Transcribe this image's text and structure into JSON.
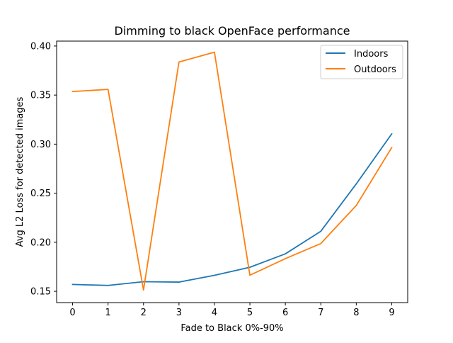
{
  "chart_data": {
    "type": "line",
    "title": "Dimming to black OpenFace performance",
    "xlabel": "Fade to Black 0%-90%",
    "ylabel": "Avg L2 Loss for detected images",
    "x": [
      0,
      1,
      2,
      3,
      4,
      5,
      6,
      7,
      8,
      9
    ],
    "xticks": [
      "0",
      "1",
      "2",
      "3",
      "4",
      "5",
      "6",
      "7",
      "8",
      "9"
    ],
    "yticks": [
      "0.15",
      "0.20",
      "0.25",
      "0.30",
      "0.35",
      "0.40"
    ],
    "xlim": [
      -0.45,
      9.45
    ],
    "ylim": [
      0.1385,
      0.405
    ],
    "grid": false,
    "legend_position": "top-right",
    "series": [
      {
        "name": "Indoors",
        "color": "#1f77b4",
        "values": [
          0.157,
          0.156,
          0.1598,
          0.1594,
          0.1663,
          0.1745,
          0.1882,
          0.2112,
          0.2595,
          0.3105
        ]
      },
      {
        "name": "Outdoors",
        "color": "#ff7f0e",
        "values": [
          0.3536,
          0.3558,
          0.1513,
          0.3837,
          0.3937,
          0.1664,
          0.1833,
          0.1987,
          0.2375,
          0.2965
        ]
      }
    ]
  }
}
